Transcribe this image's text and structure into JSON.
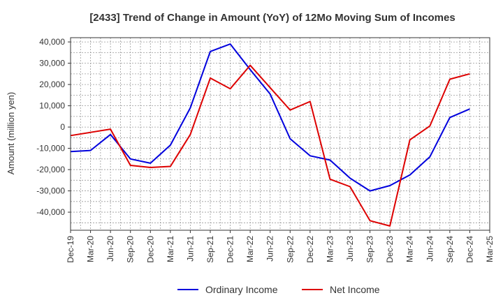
{
  "chart_data": {
    "type": "line",
    "title": "[2433]  Trend of Change in Amount (YoY) of 12Mo Moving Sum of Incomes",
    "xlabel": "",
    "ylabel": "Amount (million yen)",
    "ylim": [
      -48500,
      42000
    ],
    "yticks": [
      40000,
      30000,
      20000,
      10000,
      0,
      -10000,
      -20000,
      -30000,
      -40000
    ],
    "ytick_labels": [
      "40,000",
      "30,000",
      "20,000",
      "10,000",
      "0",
      "-10,000",
      "-20,000",
      "-30,000",
      "-40,000"
    ],
    "categories": [
      "Dec-19",
      "Mar-20",
      "Jun-20",
      "Sep-20",
      "Dec-20",
      "Mar-21",
      "Jun-21",
      "Sep-21",
      "Dec-21",
      "Mar-22",
      "Jun-22",
      "Sep-22",
      "Dec-22",
      "Mar-23",
      "Jun-23",
      "Sep-23",
      "Dec-23",
      "Mar-24",
      "Jun-24",
      "Sep-24",
      "Dec-24",
      "Mar-25"
    ],
    "grid": true,
    "legend_position": "bottom-center",
    "series": [
      {
        "name": "Ordinary Income",
        "color": "#0000dd",
        "values": [
          -11500,
          -11000,
          -3500,
          -15000,
          -17000,
          -8500,
          9000,
          35500,
          39000,
          27000,
          15500,
          -5500,
          -13500,
          -15500,
          -24000,
          -30000,
          -27500,
          -22500,
          -14000,
          4500,
          8500,
          null
        ]
      },
      {
        "name": "Net Income",
        "color": "#dd0000",
        "values": [
          -4000,
          -2500,
          -1000,
          -18000,
          -19000,
          -18500,
          -3500,
          23000,
          18000,
          29000,
          18500,
          8000,
          12000,
          -24500,
          -28000,
          -44000,
          -46500,
          -6000,
          500,
          22500,
          25000,
          null
        ]
      }
    ]
  }
}
